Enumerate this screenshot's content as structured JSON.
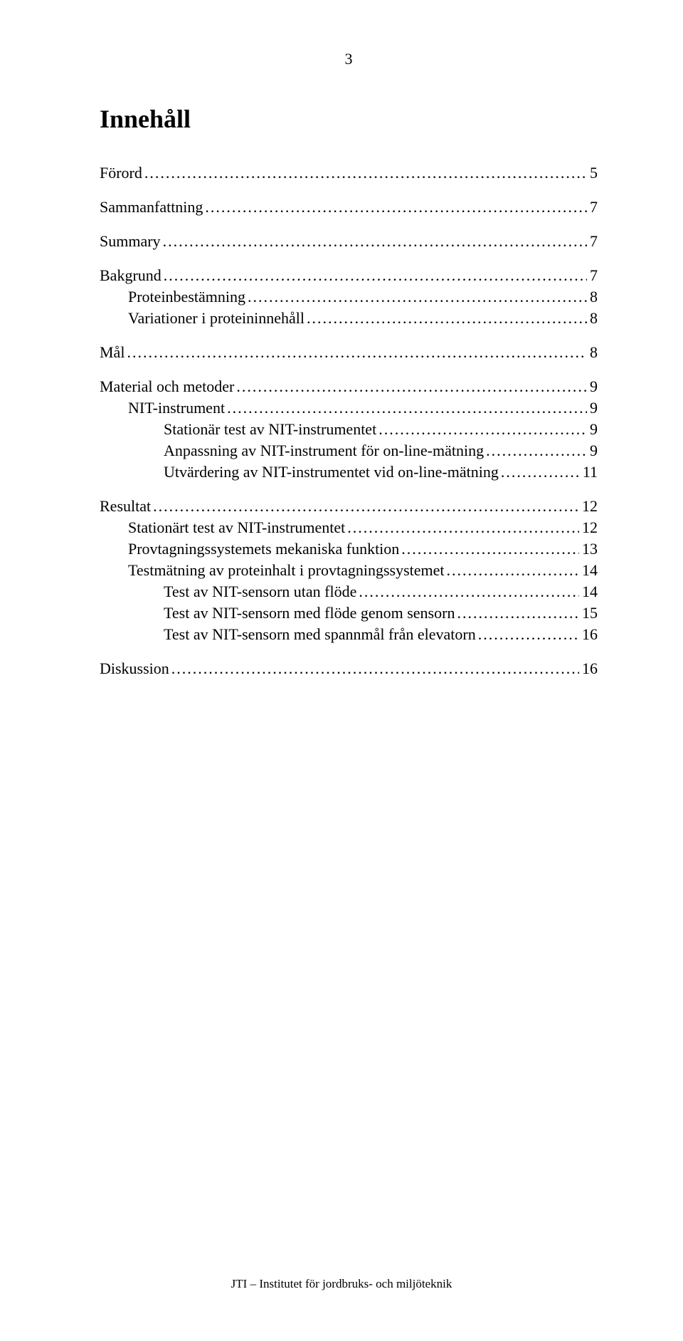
{
  "page_number": "3",
  "title": "Innehåll",
  "toc": [
    {
      "level": 0,
      "label": "Förord",
      "page": "5"
    },
    {
      "level": 0,
      "label": "Sammanfattning",
      "page": "7"
    },
    {
      "level": 0,
      "label": "Summary",
      "page": "7"
    },
    {
      "level": 0,
      "label": "Bakgrund",
      "page": "7"
    },
    {
      "level": 1,
      "label": "Proteinbestämning",
      "page": "8"
    },
    {
      "level": 1,
      "label": "Variationer i proteininnehåll",
      "page": "8"
    },
    {
      "level": 0,
      "label": "Mål",
      "page": "8"
    },
    {
      "level": 0,
      "label": "Material och metoder",
      "page": "9"
    },
    {
      "level": 1,
      "label": "NIT-instrument",
      "page": "9"
    },
    {
      "level": 2,
      "label": "Stationär test av NIT-instrumentet",
      "page": "9"
    },
    {
      "level": 2,
      "label": "Anpassning av NIT-instrument för on-line-mätning",
      "page": "9"
    },
    {
      "level": 2,
      "label": "Utvärdering av NIT-instrumentet vid on-line-mätning",
      "page": "11"
    },
    {
      "level": 0,
      "label": "Resultat",
      "page": "12"
    },
    {
      "level": 1,
      "label": "Stationärt test av NIT-instrumentet",
      "page": "12"
    },
    {
      "level": 1,
      "label": "Provtagningssystemets mekaniska funktion",
      "page": "13"
    },
    {
      "level": 1,
      "label": "Testmätning av proteinhalt i provtagningssystemet",
      "page": "14"
    },
    {
      "level": 2,
      "label": "Test av NIT-sensorn utan flöde",
      "page": "14"
    },
    {
      "level": 2,
      "label": "Test av NIT-sensorn med flöde genom sensorn",
      "page": "15"
    },
    {
      "level": 2,
      "label": "Test av NIT-sensorn med spannmål från elevatorn",
      "page": "16"
    },
    {
      "level": 0,
      "label": "Diskussion",
      "page": "16"
    }
  ],
  "footer": "JTI – Institutet för jordbruks- och miljöteknik"
}
